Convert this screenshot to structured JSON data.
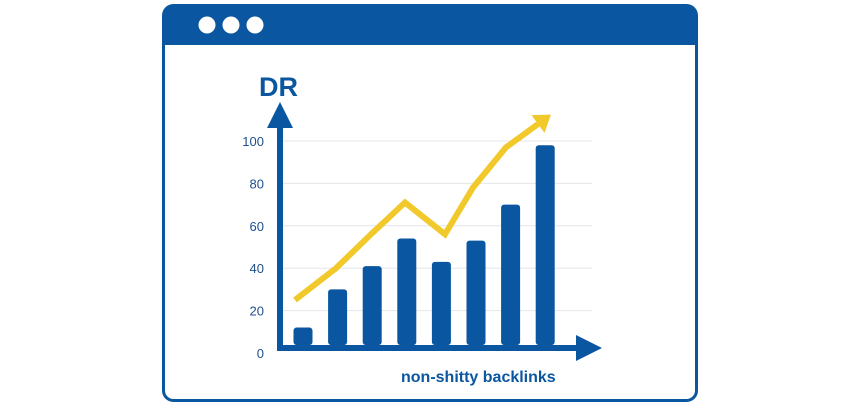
{
  "window": {
    "frame_color": "#0a56a0",
    "dots": [
      "window-dot",
      "window-dot",
      "window-dot"
    ]
  },
  "chart_data": {
    "type": "bar",
    "ylabel": "DR",
    "xlabel": "non-shitty backlinks",
    "ylim": [
      0,
      110
    ],
    "yticks": [
      0,
      20,
      40,
      60,
      80,
      100
    ],
    "grid": true,
    "categories": [
      "",
      "",
      "",
      "",
      "",
      "",
      "",
      ""
    ],
    "series": [
      {
        "type": "bar",
        "values": [
          12,
          30,
          41,
          54,
          43,
          53,
          70,
          98
        ],
        "color": "#0a56a0"
      },
      {
        "type": "line",
        "values": [
          25,
          40,
          56,
          71,
          56,
          78,
          97,
          108
        ],
        "color": "#f2c92b",
        "arrow": true
      }
    ]
  }
}
